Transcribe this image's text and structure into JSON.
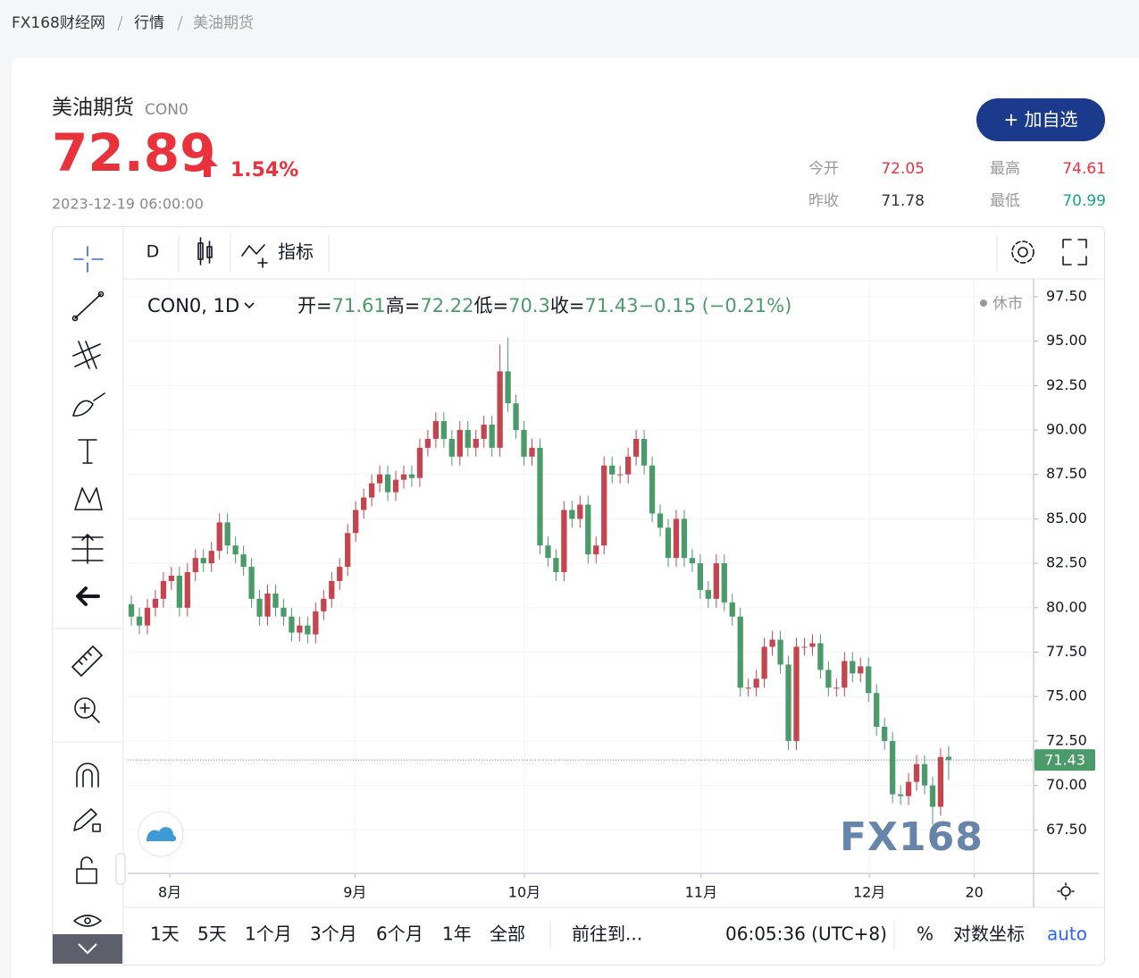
{
  "breadcrumb": [
    "FX168财经网",
    "行情",
    "美油期货"
  ],
  "header": {
    "title": "美油期货",
    "code": "CON0",
    "price": 72.89,
    "change_pct": "1.54%",
    "time": "2023-12-19 06:00:00",
    "button": "+ 加自选",
    "stats": [
      {
        "label": "今开",
        "value": 72.05,
        "color": "#e8323c"
      },
      {
        "label": "最高",
        "value": 74.61,
        "color": "#e8323c"
      },
      {
        "label": "昨收",
        "value": 71.78,
        "color": "#333333"
      },
      {
        "label": "最低",
        "value": 70.99,
        "color": "#1aa38b"
      }
    ]
  },
  "toolbar": {
    "interval": "D",
    "indicators": "指标"
  },
  "bottom_bar": {
    "ranges": [
      "1天",
      "5天",
      "1个月",
      "3个月",
      "6个月",
      "1年",
      "全部"
    ],
    "goto": "前往到...",
    "clock": "06:05:36 (UTC+8)",
    "percent": "%",
    "log": "对数坐标",
    "auto": "auto"
  },
  "chart_data": {
    "type": "candlestick",
    "symbol": "CON0, 1D",
    "legend_labels": {
      "open": "开=",
      "high": "高=",
      "low": "低=",
      "close": "收="
    },
    "change": "−0.15 (−0.21%)",
    "status": "休市",
    "watermark": "FX168",
    "up_color": "#c2454f",
    "down_color": "#4a9a6a",
    "grid": true,
    "open": [
      80.2,
      79.5,
      79.0,
      80.0,
      80.5,
      81.5,
      81.8,
      80.0,
      82.0,
      82.8,
      82.5,
      83.2,
      84.8,
      83.5,
      83.0,
      82.3,
      80.5,
      79.5,
      80.8,
      80.0,
      79.5,
      78.6,
      79.0,
      78.5,
      79.8,
      80.5,
      81.5,
      82.3,
      84.2,
      85.5,
      86.2,
      87.0,
      87.5,
      86.5,
      87.2,
      87.5,
      87.3,
      89.0,
      89.5,
      90.5,
      89.5,
      88.5,
      90.0,
      89.0,
      89.5,
      90.3,
      89.0,
      93.3,
      91.5,
      90.0,
      88.5,
      89.0,
      83.5,
      82.8,
      82.0,
      85.5,
      85.0,
      85.8,
      83.0,
      83.5,
      88.0,
      87.5,
      87.5,
      88.5,
      89.5,
      88.0,
      85.3,
      84.5,
      82.8,
      85.0,
      82.8,
      82.5,
      81.0,
      80.5,
      82.5,
      80.3,
      79.5,
      75.5,
      75.5,
      76.0,
      77.8,
      78.2,
      76.8,
      72.5,
      77.8,
      77.8,
      78.0,
      76.5,
      75.5,
      75.5,
      77.0,
      76.3,
      76.7,
      75.2,
      73.3,
      72.5,
      69.5,
      69.4,
      70.2,
      71.2,
      70.0,
      68.8,
      71.61
    ],
    "high": [
      80.7,
      80.0,
      80.5,
      81.0,
      82.0,
      82.3,
      82.3,
      82.5,
      83.3,
      83.3,
      83.7,
      85.3,
      85.3,
      84.0,
      83.5,
      82.8,
      81.0,
      81.3,
      81.3,
      80.5,
      80.0,
      79.5,
      79.5,
      80.3,
      81.0,
      82.0,
      82.8,
      84.7,
      86.0,
      86.7,
      87.5,
      88.0,
      88.0,
      87.7,
      88.0,
      88.0,
      89.5,
      90.0,
      91.0,
      91.0,
      90.0,
      90.5,
      90.5,
      90.0,
      90.8,
      90.8,
      94.8,
      95.2,
      92.0,
      90.5,
      89.5,
      89.5,
      84.0,
      83.3,
      86.0,
      86.0,
      86.3,
      86.3,
      84.0,
      88.5,
      88.5,
      88.0,
      89.0,
      90.0,
      90.0,
      88.5,
      85.8,
      85.0,
      85.5,
      85.5,
      83.3,
      83.0,
      81.5,
      83.0,
      83.0,
      80.8,
      80.0,
      76.0,
      76.5,
      78.3,
      78.7,
      78.7,
      77.3,
      78.3,
      78.3,
      78.5,
      78.5,
      77.0,
      76.0,
      77.5,
      77.5,
      77.2,
      77.2,
      75.7,
      73.8,
      73.0,
      70.0,
      70.7,
      71.7,
      71.7,
      70.5,
      72.1,
      72.22
    ],
    "low": [
      79.0,
      78.5,
      78.5,
      79.5,
      80.0,
      81.0,
      79.5,
      79.5,
      81.5,
      82.0,
      82.0,
      82.7,
      83.0,
      82.5,
      81.8,
      80.0,
      79.0,
      79.0,
      79.5,
      79.0,
      78.1,
      78.1,
      78.0,
      78.0,
      79.3,
      80.0,
      81.0,
      81.8,
      83.7,
      85.0,
      85.7,
      86.5,
      86.0,
      86.0,
      86.7,
      86.8,
      86.8,
      88.5,
      89.0,
      89.0,
      88.0,
      88.0,
      88.5,
      88.5,
      89.0,
      88.5,
      88.5,
      91.0,
      89.5,
      88.0,
      88.0,
      83.0,
      82.3,
      81.5,
      81.5,
      84.5,
      84.5,
      82.5,
      82.5,
      83.0,
      87.0,
      87.0,
      87.0,
      88.0,
      87.5,
      84.8,
      84.0,
      82.3,
      82.3,
      82.3,
      82.0,
      80.5,
      80.0,
      80.0,
      79.8,
      79.0,
      75.0,
      75.0,
      75.0,
      75.5,
      77.3,
      76.3,
      72.0,
      72.0,
      77.3,
      77.3,
      76.0,
      75.0,
      75.0,
      75.0,
      75.8,
      75.8,
      74.7,
      72.8,
      72.0,
      69.0,
      68.9,
      68.9,
      69.7,
      69.5,
      67.8,
      68.3,
      70.3
    ],
    "close": [
      79.5,
      79.0,
      80.0,
      80.5,
      81.5,
      81.8,
      80.0,
      82.0,
      82.8,
      82.5,
      83.2,
      84.8,
      83.5,
      83.0,
      82.3,
      80.5,
      79.5,
      80.8,
      80.0,
      79.5,
      78.6,
      79.0,
      78.5,
      79.8,
      80.5,
      81.5,
      82.3,
      84.2,
      85.5,
      86.2,
      87.0,
      87.5,
      86.5,
      87.2,
      87.5,
      87.3,
      89.0,
      89.5,
      90.5,
      89.5,
      88.5,
      90.0,
      89.0,
      89.5,
      90.3,
      89.0,
      93.3,
      91.5,
      90.0,
      88.5,
      89.0,
      83.5,
      82.8,
      82.0,
      85.5,
      85.0,
      85.8,
      83.0,
      83.5,
      88.0,
      87.5,
      87.5,
      88.5,
      89.5,
      88.0,
      85.3,
      84.5,
      82.8,
      85.0,
      82.8,
      82.5,
      81.0,
      80.5,
      82.5,
      80.3,
      79.5,
      75.5,
      75.5,
      76.0,
      77.8,
      78.2,
      76.8,
      72.5,
      77.8,
      77.8,
      78.0,
      76.5,
      75.5,
      75.5,
      77.0,
      76.3,
      76.7,
      75.2,
      73.3,
      72.5,
      69.5,
      69.4,
      70.2,
      71.2,
      70.0,
      68.8,
      71.6,
      71.43
    ],
    "xlim": [
      -0.45,
      112.6
    ],
    "xticks": [
      {
        "value": 4.8,
        "label": "8月"
      },
      {
        "value": 27.9,
        "label": "9月"
      },
      {
        "value": 49.05,
        "label": "10月"
      },
      {
        "value": 71.1,
        "label": "11月"
      },
      {
        "value": 92.1,
        "label": "12月"
      },
      {
        "value": 105.2,
        "label": "20"
      }
    ],
    "ylim": [
      65.05,
      98.5
    ],
    "yticks": [
      {
        "value": 67.5,
        "label": "67.50"
      },
      {
        "value": 70,
        "label": "70.00"
      },
      {
        "value": 72.5,
        "label": "72.50"
      },
      {
        "value": 75,
        "label": "75.00"
      },
      {
        "value": 77.5,
        "label": "77.50"
      },
      {
        "value": 80,
        "label": "80.00"
      },
      {
        "value": 82.5,
        "label": "82.50"
      },
      {
        "value": 85,
        "label": "85.00"
      },
      {
        "value": 87.5,
        "label": "87.50"
      },
      {
        "value": 90,
        "label": "90.00"
      },
      {
        "value": 92.5,
        "label": "92.50"
      },
      {
        "value": 95,
        "label": "95.00"
      },
      {
        "value": 97.5,
        "label": "97.50"
      }
    ]
  }
}
